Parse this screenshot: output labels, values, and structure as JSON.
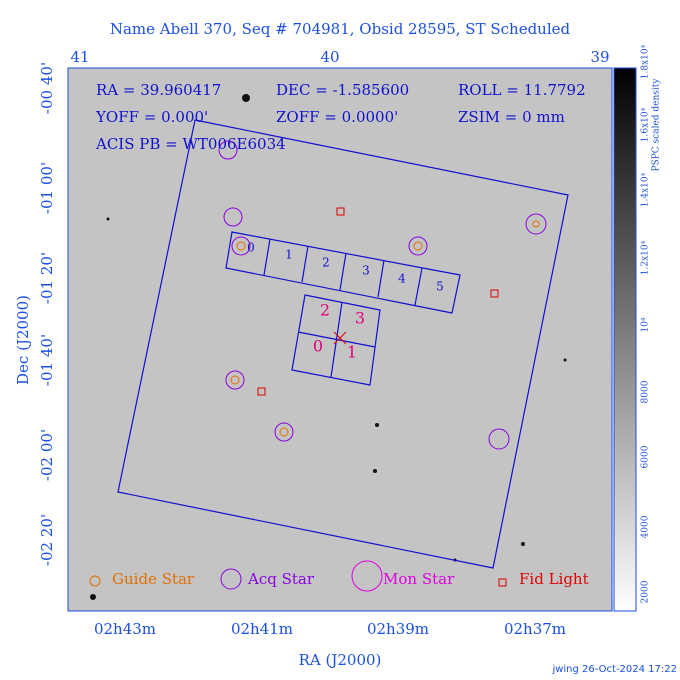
{
  "header": {
    "title": "Name Abell 370, Seq # 704981, Obsid 28595, ST Scheduled"
  },
  "top_axis": {
    "ticks": [
      "41",
      "40",
      "39"
    ]
  },
  "left_axis": {
    "label": "Dec (J2000)",
    "ticks": [
      "-00 40'",
      "-01 00'",
      "-01 20'",
      "-01 40'",
      "-02 00'",
      "-02 20'"
    ]
  },
  "bottom_axis": {
    "label": "RA (J2000)",
    "ticks": [
      "02h43m",
      "02h41m",
      "02h39m",
      "02h37m"
    ]
  },
  "colorbar": {
    "label": "PSPC scaled density",
    "ticks": [
      "2000",
      "4000",
      "6000",
      "8000",
      "10⁴",
      "1.2x10⁴",
      "1.4x10⁴",
      "1.6x10⁴",
      "1.8x10⁴"
    ]
  },
  "info": {
    "rows": [
      [
        "RA = 39.960417",
        "DEC = -1.585600",
        "ROLL = 11.7792"
      ],
      [
        "YOFF = 0.000'",
        "ZOFF = 0.0000'",
        "ZSIM = 0 mm"
      ],
      [
        "ACIS PB = WT006E6034"
      ]
    ]
  },
  "chips": {
    "s_array": [
      "0",
      "1",
      "2",
      "3",
      "4",
      "5"
    ],
    "i_array": [
      "2",
      "3",
      "0",
      "1"
    ]
  },
  "legend": {
    "items": [
      "Guide Star",
      "Acq Star",
      "Mon Star",
      "Fid Light"
    ]
  },
  "footer": {
    "text": "jwing 26-Oct-2024 17:22"
  }
}
